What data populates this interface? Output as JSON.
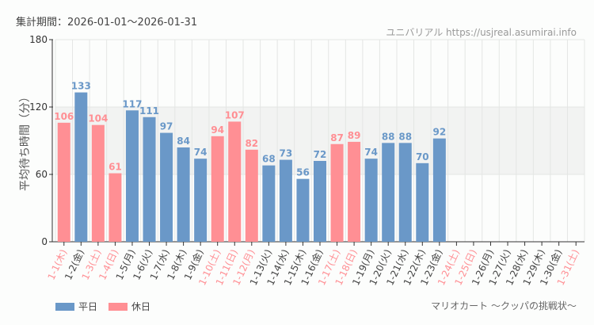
{
  "header": {
    "period": "集計期間：2026-01-01〜2026-01-31",
    "source": "ユニバリアル  https://usjreal.asumirai.info"
  },
  "footer": {
    "attraction": "マリオカート 〜クッパの挑戦状〜"
  },
  "colors": {
    "weekday": "#6a98c8",
    "holiday": "#ff8f94"
  },
  "chart_data": {
    "type": "bar",
    "ylabel": "平均待ち時間（分）",
    "ylim": [
      0,
      180
    ],
    "yticks": [
      0,
      60,
      120,
      180
    ],
    "legend": [
      {
        "name": "平日",
        "kind": "weekday"
      },
      {
        "name": "休日",
        "kind": "holiday"
      }
    ],
    "legend_position": "bottom-left",
    "categories": [
      "1-1(木)",
      "1-2(金)",
      "1-3(土)",
      "1-4(日)",
      "1-5(月)",
      "1-6(火)",
      "1-7(水)",
      "1-8(木)",
      "1-9(金)",
      "1-10(土)",
      "1-11(日)",
      "1-12(月)",
      "1-13(火)",
      "1-14(水)",
      "1-15(木)",
      "1-16(金)",
      "1-17(土)",
      "1-18(日)",
      "1-19(月)",
      "1-20(火)",
      "1-21(水)",
      "1-22(木)",
      "1-23(金)",
      "1-24(土)",
      "1-25(日)",
      "1-26(月)",
      "1-27(火)",
      "1-28(水)",
      "1-29(木)",
      "1-30(金)",
      "1-31(土)"
    ],
    "holiday": [
      1,
      0,
      1,
      1,
      0,
      0,
      0,
      0,
      0,
      1,
      1,
      1,
      0,
      0,
      0,
      0,
      1,
      1,
      0,
      0,
      0,
      0,
      0,
      1,
      1,
      0,
      0,
      0,
      0,
      0,
      1
    ],
    "values": [
      106,
      133,
      104,
      61,
      117,
      111,
      97,
      84,
      74,
      94,
      107,
      82,
      68,
      73,
      56,
      72,
      87,
      89,
      74,
      88,
      88,
      70,
      92,
      null,
      null,
      null,
      null,
      null,
      null,
      null,
      null
    ]
  }
}
